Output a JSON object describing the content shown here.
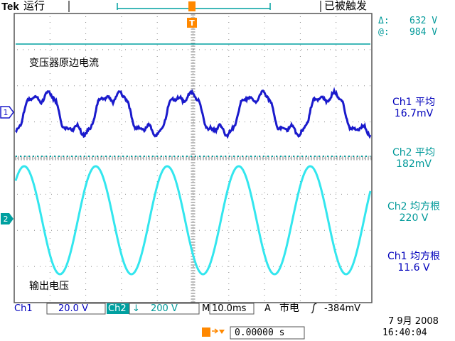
{
  "header": {
    "brand": "Tek",
    "run_state": "运行",
    "trigger_status": "已被触发"
  },
  "cursor_readout": {
    "delta_label": "Δ:",
    "delta_value": "632 V",
    "at_label": "@:",
    "at_value": "984 V"
  },
  "markers": {
    "trigger_marker": "T",
    "ch1_marker": "1",
    "ch2_marker": "2"
  },
  "traces": {
    "ch1_label": "变压器原边电流",
    "ch2_label": "输出电压",
    "colors": {
      "ch1": "#1a1acc",
      "ch2": "#33e6ee",
      "teal": "#00a0a0",
      "orange": "#ff8800"
    }
  },
  "measurements": [
    {
      "title": "Ch1 平均",
      "value": "16.7mV",
      "color": "#0000bb"
    },
    {
      "title": "Ch2 平均",
      "value": "182mV",
      "color": "#009999"
    },
    {
      "title": "Ch2 均方根",
      "value": "220 V",
      "color": "#009999"
    },
    {
      "title": "Ch1 均方根",
      "value": "11.6 V",
      "color": "#0000bb"
    }
  ],
  "status_bar": {
    "ch1_label": "Ch1",
    "ch1_scale": "20.0 V",
    "ch2_label": "Ch2",
    "ch2_coupling_icon": "↓",
    "ch2_scale": "200 V",
    "time_label": "M",
    "time_scale": "10.0ms",
    "trigger_source": "A",
    "trigger_type": "市电",
    "trigger_slope_icon": "ʃ",
    "trigger_level": "-384mV"
  },
  "bottom": {
    "trigger_offset_icon": "T→▾",
    "trigger_offset_value": "0.00000 s",
    "date": "7 9月  2008",
    "time": "16:40:04"
  }
}
